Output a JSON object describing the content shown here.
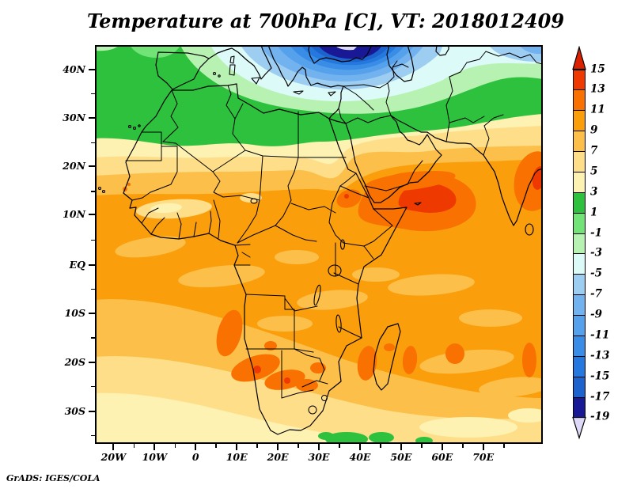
{
  "title": "Temperature at 700hPa [C], VT: 2018012409",
  "credit": "GrADS: IGES/COLA",
  "axes": {
    "lat_ticks": [
      "40N",
      "30N",
      "20N",
      "10N",
      "EQ",
      "10S",
      "20S",
      "30S"
    ],
    "lon_ticks": [
      "20W",
      "10W",
      "0",
      "10E",
      "20E",
      "30E",
      "40E",
      "50E",
      "60E",
      "70E"
    ]
  },
  "colorbar": {
    "tick_labels": [
      "15",
      "13",
      "11",
      "9",
      "7",
      "5",
      "3",
      "1",
      "-1",
      "-3",
      "-5",
      "-7",
      "-9",
      "-11",
      "-13",
      "-15",
      "-17",
      "-19"
    ],
    "segment_level_keys_top_to_bottom": [
      "13_15",
      "11_13",
      "9_11",
      "7_9",
      "5_7",
      "3_5",
      "1_3",
      "m1_1",
      "m3_m1",
      "m5_m3",
      "m7_m5",
      "m9_m7",
      "m11_m9",
      "m13_m11",
      "m15_m13",
      "m17_m15",
      "m19_m17"
    ],
    "above_max_key": "gt15",
    "below_min_key": "ltm19"
  },
  "palette": {
    "gt15": "#db2000",
    "13_15": "#ee3a00",
    "11_13": "#f97100",
    "9_11": "#fb9e0c",
    "7_9": "#fcc04a",
    "5_7": "#fede89",
    "3_5": "#fdf2b2",
    "1_3": "#2ec13e",
    "m1_1": "#72e377",
    "m3_m1": "#b8f2b2",
    "m5_m3": "#dcfaf8",
    "m7_m5": "#9ecdf2",
    "m9_m7": "#72b2ef",
    "m11_m9": "#55a1ec",
    "m13_m11": "#3a8de6",
    "m15_m13": "#2478de",
    "m17_m15": "#1c63cd",
    "m19_m17": "#191996",
    "ltm19": "#ded9f6",
    "line": "#000000"
  },
  "chart_data": {
    "type": "heatmap",
    "title": "Temperature at 700hPa [C], VT: 2018012409",
    "variable": "air temperature",
    "pressure_level": "700hPa",
    "units": "C",
    "valid_time": "2018012409",
    "x_axis": {
      "name": "longitude",
      "tick_labels": [
        "20W",
        "10W",
        "0",
        "10E",
        "20E",
        "30E",
        "40E",
        "50E",
        "60E",
        "70E"
      ],
      "approx_range_deg": [
        -25,
        85
      ]
    },
    "y_axis": {
      "name": "latitude",
      "tick_labels": [
        "40N",
        "30N",
        "20N",
        "10N",
        "EQ",
        "10S",
        "20S",
        "30S"
      ],
      "approx_range_deg": [
        -37,
        45
      ]
    },
    "contour_levels_c": [
      -19,
      -17,
      -15,
      -13,
      -11,
      -9,
      -7,
      -5,
      -3,
      -1,
      1,
      3,
      5,
      7,
      9,
      11,
      13,
      15
    ],
    "legend_position": "right",
    "grid": false,
    "scale_top_to_bottom": [
      {
        "range": "above 15",
        "color": "#db2000"
      },
      {
        "range": "13 to 15",
        "color": "#ee3a00"
      },
      {
        "range": "11 to 13",
        "color": "#f97100"
      },
      {
        "range": "9 to 11",
        "color": "#fb9e0c"
      },
      {
        "range": "7 to 9",
        "color": "#fcc04a"
      },
      {
        "range": "5 to 7",
        "color": "#fede89"
      },
      {
        "range": "3 to 5",
        "color": "#fdf2b2"
      },
      {
        "range": "1 to 3",
        "color": "#2ec13e"
      },
      {
        "range": "-1 to 1",
        "color": "#72e377"
      },
      {
        "range": "-3 to -1",
        "color": "#b8f2b2"
      },
      {
        "range": "-5 to -3",
        "color": "#dcfaf8"
      },
      {
        "range": "-7 to -5",
        "color": "#9ecdf2"
      },
      {
        "range": "-9 to -7",
        "color": "#72b2ef"
      },
      {
        "range": "-11 to -9",
        "color": "#55a1ec"
      },
      {
        "range": "-13 to -11",
        "color": "#3a8de6"
      },
      {
        "range": "-15 to -13",
        "color": "#2478de"
      },
      {
        "range": "-17 to -15",
        "color": "#1c63cd"
      },
      {
        "range": "-19 to -17",
        "color": "#191996"
      },
      {
        "range": "below -19",
        "color": "#ded9f6"
      }
    ],
    "features": [
      "Cold core below -19C centered over the Black Sea at the top of the map",
      "Concentric -5 to -17C blue bands over Turkey, the Aegean and the eastern Mediterranean",
      "1 to 3C green band across Iberia, Morocco, Algeria, Libya, Egypt and the northern Middle East",
      "3 to 9C pale yellow transition band across the Sahara around 20N-25N",
      "9 to 11C orange over most of tropical Africa, Arabia and the Indian Ocean",
      "11 to 13C warm patch with a 13 to 15C core east of the Horn of Africa near 55E 13N",
      "11 to 13C warm patches over Angola, Namibia, Botswana and around Madagascar",
      "3 to 7C pale band in the far South Atlantic with 1 to 3C green patches along the southern map edge near 40E-55E"
    ]
  }
}
